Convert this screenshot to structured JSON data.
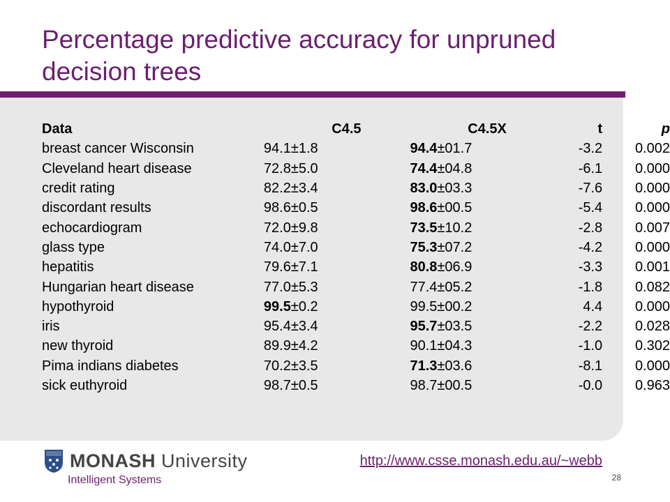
{
  "title": "Percentage predictive accuracy for unpruned decision trees",
  "table": {
    "headers": {
      "data": "Data",
      "c45": "C4.5",
      "c45x": "C4.5X",
      "t": "t",
      "p": "p"
    },
    "rows": [
      {
        "name": "breast cancer Wisconsin",
        "c45_bold": "",
        "c45_rest": "94.1±1.8",
        "c45x_bold": "94.4",
        "c45x_rest": "±01.7",
        "t": "-3.2",
        "p": "0.002"
      },
      {
        "name": "Cleveland heart disease",
        "c45_bold": "",
        "c45_rest": "72.8±5.0",
        "c45x_bold": "74.4",
        "c45x_rest": "±04.8",
        "t": "-6.1",
        "p": "0.000"
      },
      {
        "name": "credit rating",
        "c45_bold": "",
        "c45_rest": "82.2±3.4",
        "c45x_bold": "83.0",
        "c45x_rest": "±03.3",
        "t": "-7.6",
        "p": "0.000"
      },
      {
        "name": "discordant results",
        "c45_bold": "",
        "c45_rest": "98.6±0.5",
        "c45x_bold": "98.6",
        "c45x_rest": "±00.5",
        "t": "-5.4",
        "p": "0.000"
      },
      {
        "name": "echocardiogram",
        "c45_bold": "",
        "c45_rest": "72.0±9.8",
        "c45x_bold": "73.5",
        "c45x_rest": "±10.2",
        "t": "-2.8",
        "p": "0.007"
      },
      {
        "name": "glass type",
        "c45_bold": "",
        "c45_rest": "74.0±7.0",
        "c45x_bold": "75.3",
        "c45x_rest": "±07.2",
        "t": "-4.2",
        "p": "0.000"
      },
      {
        "name": "hepatitis",
        "c45_bold": "",
        "c45_rest": "79.6±7.1",
        "c45x_bold": "80.8",
        "c45x_rest": "±06.9",
        "t": "-3.3",
        "p": "0.001"
      },
      {
        "name": "Hungarian heart disease",
        "c45_bold": "",
        "c45_rest": "77.0±5.3",
        "c45x_bold": "",
        "c45x_rest": "77.4±05.2",
        "t": "-1.8",
        "p": "0.082"
      },
      {
        "name": "hypothyroid",
        "c45_bold": "99.5",
        "c45_rest": "±0.2",
        "c45x_bold": "",
        "c45x_rest": "99.5±00.2",
        "t": "4.4",
        "p": "0.000"
      },
      {
        "name": "iris",
        "c45_bold": "",
        "c45_rest": "95.4±3.4",
        "c45x_bold": "95.7",
        "c45x_rest": "±03.5",
        "t": "-2.2",
        "p": "0.028"
      },
      {
        "name": "new thyroid",
        "c45_bold": "",
        "c45_rest": "89.9±4.2",
        "c45x_bold": "",
        "c45x_rest": "90.1±04.3",
        "t": "-1.0",
        "p": "0.302"
      },
      {
        "name": "Pima indians diabetes",
        "c45_bold": "",
        "c45_rest": "70.2±3.5",
        "c45x_bold": "71.3",
        "c45x_rest": "±03.6",
        "t": "-8.1",
        "p": "0.000"
      },
      {
        "name": "sick euthyroid",
        "c45_bold": "",
        "c45_rest": "98.7±0.5",
        "c45x_bold": "",
        "c45x_rest": "98.7±00.5",
        "t": "-0.0",
        "p": "0.963"
      }
    ]
  },
  "footer": {
    "logo_bold": "MONASH",
    "logo_rest": " University",
    "subtitle": "Intelligent Systems",
    "link": "http://www.csse.monash.edu.au/~webb",
    "page_number": "28"
  },
  "colors": {
    "accent": "#6b1f6f",
    "panel": "#e8e8e8"
  }
}
